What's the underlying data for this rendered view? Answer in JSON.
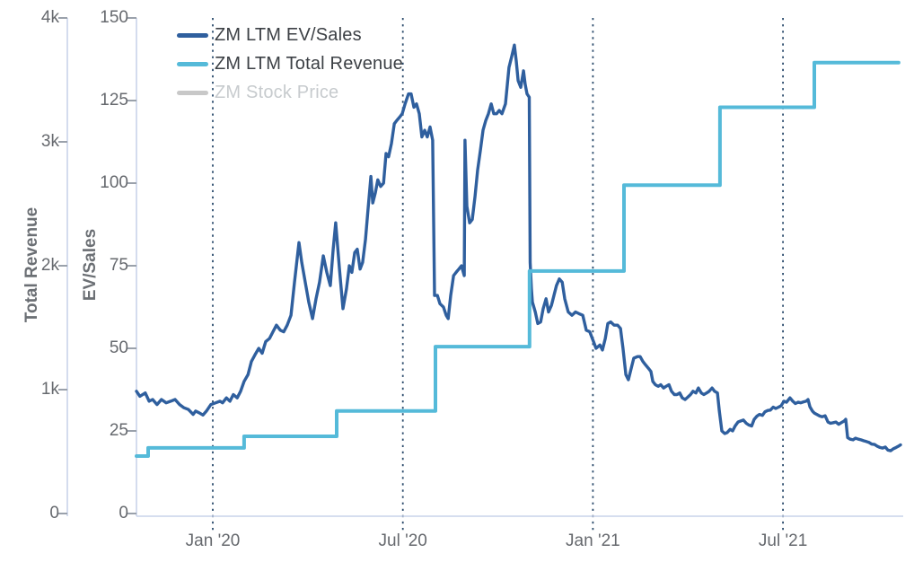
{
  "chart_data": {
    "type": "line",
    "title": "",
    "legend": [
      {
        "label": "ZM LTM EV/Sales",
        "color": "#2f5f9e",
        "enabled": true
      },
      {
        "label": "ZM LTM Total Revenue",
        "color": "#55bad9",
        "enabled": true
      },
      {
        "label": "ZM Stock Price",
        "color": "#c8c8c8",
        "enabled": false
      }
    ],
    "x_axis": {
      "tick_labels": [
        "Jan '20",
        "Jul '20",
        "Jan '21",
        "Jul '21"
      ],
      "tick_positions_months": [
        0,
        6,
        12,
        18
      ],
      "range_months": [
        -2.45,
        21.85
      ],
      "gridlines": "dotted-vertical",
      "gridline_color": "#2a4a6b"
    },
    "y_axis_revenue": {
      "title": "Total Revenue",
      "tick_labels": [
        "0",
        "1k",
        "2k",
        "3k",
        "4k"
      ],
      "tick_values": [
        0,
        1000,
        2000,
        3000,
        4000
      ],
      "range": [
        0,
        4000
      ]
    },
    "y_axis_evsales": {
      "title": "EV/Sales",
      "tick_labels": [
        "0",
        "25",
        "50",
        "75",
        "100",
        "125",
        "150"
      ],
      "tick_values": [
        0,
        25,
        50,
        75,
        100,
        125,
        150
      ],
      "range": [
        0,
        150
      ]
    },
    "axis_line_color": "#c9d3ea",
    "tick_mark_color": "#9aa1ab",
    "series": [
      {
        "name": "ZM LTM EV/Sales",
        "axis": "evsales",
        "color": "#2f5f9e",
        "stroke_width": 3.4,
        "points": [
          [
            -2.41,
            37
          ],
          [
            -2.3,
            35.5
          ],
          [
            -2.13,
            36.5
          ],
          [
            -2.01,
            34
          ],
          [
            -1.9,
            34.5
          ],
          [
            -1.76,
            33
          ],
          [
            -1.62,
            34.5
          ],
          [
            -1.47,
            33.5
          ],
          [
            -1.33,
            34
          ],
          [
            -1.19,
            34.5
          ],
          [
            -1.05,
            33
          ],
          [
            -0.91,
            32
          ],
          [
            -0.77,
            31.5
          ],
          [
            -0.62,
            30
          ],
          [
            -0.54,
            31
          ],
          [
            -0.43,
            30.5
          ],
          [
            -0.31,
            29.8
          ],
          [
            -0.2,
            31
          ],
          [
            -0.06,
            33
          ],
          [
            0.09,
            33.5
          ],
          [
            0.23,
            34
          ],
          [
            0.31,
            33.5
          ],
          [
            0.43,
            35
          ],
          [
            0.54,
            34
          ],
          [
            0.65,
            36
          ],
          [
            0.77,
            35
          ],
          [
            0.88,
            37
          ],
          [
            0.99,
            40
          ],
          [
            1.11,
            42
          ],
          [
            1.22,
            46
          ],
          [
            1.33,
            48
          ],
          [
            1.45,
            50
          ],
          [
            1.56,
            48.5
          ],
          [
            1.67,
            52
          ],
          [
            1.79,
            53
          ],
          [
            1.9,
            55
          ],
          [
            2.01,
            57
          ],
          [
            2.13,
            55.5
          ],
          [
            2.24,
            55
          ],
          [
            2.35,
            57
          ],
          [
            2.47,
            60
          ],
          [
            2.58,
            70
          ],
          [
            2.72,
            82
          ],
          [
            2.81,
            76
          ],
          [
            2.92,
            70
          ],
          [
            3.03,
            64
          ],
          [
            3.15,
            59
          ],
          [
            3.26,
            65
          ],
          [
            3.37,
            70
          ],
          [
            3.49,
            78
          ],
          [
            3.6,
            73
          ],
          [
            3.71,
            69
          ],
          [
            3.8,
            80
          ],
          [
            3.88,
            88
          ],
          [
            4.0,
            74
          ],
          [
            4.11,
            62
          ],
          [
            4.22,
            68
          ],
          [
            4.31,
            75
          ],
          [
            4.39,
            73
          ],
          [
            4.48,
            79
          ],
          [
            4.56,
            80
          ],
          [
            4.65,
            74
          ],
          [
            4.73,
            76
          ],
          [
            4.82,
            83
          ],
          [
            4.9,
            92
          ],
          [
            4.99,
            102
          ],
          [
            5.05,
            94
          ],
          [
            5.13,
            97
          ],
          [
            5.21,
            101
          ],
          [
            5.3,
            99
          ],
          [
            5.39,
            100
          ],
          [
            5.47,
            109
          ],
          [
            5.55,
            108
          ],
          [
            5.64,
            112
          ],
          [
            5.73,
            118
          ],
          [
            5.81,
            119
          ],
          [
            5.9,
            120
          ],
          [
            5.98,
            121
          ],
          [
            6.07,
            124
          ],
          [
            6.18,
            127
          ],
          [
            6.26,
            127
          ],
          [
            6.35,
            123
          ],
          [
            6.43,
            124
          ],
          [
            6.52,
            121
          ],
          [
            6.6,
            114
          ],
          [
            6.69,
            116
          ],
          [
            6.77,
            114
          ],
          [
            6.86,
            117
          ],
          [
            6.94,
            113
          ],
          [
            7.0,
            66
          ],
          [
            7.09,
            66
          ],
          [
            7.17,
            63.5
          ],
          [
            7.28,
            62.5
          ],
          [
            7.37,
            60
          ],
          [
            7.43,
            59
          ],
          [
            7.51,
            66
          ],
          [
            7.6,
            72
          ],
          [
            7.68,
            73
          ],
          [
            7.77,
            74
          ],
          [
            7.85,
            75
          ],
          [
            7.94,
            72
          ],
          [
            7.96,
            113
          ],
          [
            8.02,
            93
          ],
          [
            8.11,
            88
          ],
          [
            8.19,
            89
          ],
          [
            8.28,
            96
          ],
          [
            8.36,
            104
          ],
          [
            8.45,
            110
          ],
          [
            8.53,
            116
          ],
          [
            8.62,
            119
          ],
          [
            8.7,
            121
          ],
          [
            8.79,
            124
          ],
          [
            8.87,
            121
          ],
          [
            8.96,
            121
          ],
          [
            9.04,
            122
          ],
          [
            9.13,
            121
          ],
          [
            9.24,
            124
          ],
          [
            9.35,
            135
          ],
          [
            9.44,
            138.5
          ],
          [
            9.52,
            141.8
          ],
          [
            9.58,
            137
          ],
          [
            9.64,
            131
          ],
          [
            9.72,
            129
          ],
          [
            9.81,
            134
          ],
          [
            9.86,
            130
          ],
          [
            9.92,
            127
          ],
          [
            9.99,
            126
          ],
          [
            10.02,
            76
          ],
          [
            10.06,
            68
          ],
          [
            10.09,
            64
          ],
          [
            10.18,
            61
          ],
          [
            10.26,
            57.5
          ],
          [
            10.35,
            58
          ],
          [
            10.43,
            62
          ],
          [
            10.52,
            65
          ],
          [
            10.6,
            61
          ],
          [
            10.69,
            63
          ],
          [
            10.77,
            66
          ],
          [
            10.85,
            69
          ],
          [
            10.94,
            71
          ],
          [
            11.03,
            70
          ],
          [
            11.11,
            65
          ],
          [
            11.22,
            61
          ],
          [
            11.34,
            60
          ],
          [
            11.45,
            61
          ],
          [
            11.56,
            60.5
          ],
          [
            11.68,
            60
          ],
          [
            11.79,
            55.5
          ],
          [
            11.9,
            55
          ],
          [
            12.02,
            52
          ],
          [
            12.1,
            50
          ],
          [
            12.22,
            51
          ],
          [
            12.3,
            49.5
          ],
          [
            12.39,
            53
          ],
          [
            12.47,
            57.5
          ],
          [
            12.56,
            58
          ],
          [
            12.67,
            57
          ],
          [
            12.78,
            57
          ],
          [
            12.87,
            56
          ],
          [
            12.95,
            50
          ],
          [
            13.04,
            42
          ],
          [
            13.12,
            40.5
          ],
          [
            13.21,
            44
          ],
          [
            13.29,
            47
          ],
          [
            13.41,
            47.5
          ],
          [
            13.49,
            47.5
          ],
          [
            13.58,
            46
          ],
          [
            13.66,
            45
          ],
          [
            13.75,
            44
          ],
          [
            13.83,
            43
          ],
          [
            13.89,
            40
          ],
          [
            13.97,
            39
          ],
          [
            14.06,
            38.5
          ],
          [
            14.14,
            39
          ],
          [
            14.23,
            38
          ],
          [
            14.31,
            38.5
          ],
          [
            14.4,
            39
          ],
          [
            14.48,
            37
          ],
          [
            14.57,
            36
          ],
          [
            14.65,
            36
          ],
          [
            14.74,
            36.5
          ],
          [
            14.82,
            35
          ],
          [
            14.91,
            34.5
          ],
          [
            14.99,
            35.2
          ],
          [
            15.08,
            36
          ],
          [
            15.16,
            37
          ],
          [
            15.25,
            36.5
          ],
          [
            15.33,
            38
          ],
          [
            15.42,
            36.5
          ],
          [
            15.5,
            36
          ],
          [
            15.59,
            36.5
          ],
          [
            15.67,
            37
          ],
          [
            15.76,
            38
          ],
          [
            15.84,
            37
          ],
          [
            15.93,
            36.5
          ],
          [
            15.99,
            31
          ],
          [
            16.07,
            25
          ],
          [
            16.16,
            24.2
          ],
          [
            16.24,
            24.5
          ],
          [
            16.33,
            25.5
          ],
          [
            16.41,
            25
          ],
          [
            16.49,
            26.5
          ],
          [
            16.58,
            27.7
          ],
          [
            16.66,
            28
          ],
          [
            16.75,
            28.3
          ],
          [
            16.84,
            27.3
          ],
          [
            16.92,
            26.8
          ],
          [
            17.01,
            26.5
          ],
          [
            17.09,
            28.5
          ],
          [
            17.18,
            29.5
          ],
          [
            17.26,
            30
          ],
          [
            17.35,
            29.7
          ],
          [
            17.43,
            30.8
          ],
          [
            17.52,
            31.2
          ],
          [
            17.6,
            31.3
          ],
          [
            17.69,
            32.2
          ],
          [
            17.77,
            31.8
          ],
          [
            17.86,
            32.2
          ],
          [
            17.94,
            32.6
          ],
          [
            18.03,
            34
          ],
          [
            18.11,
            33.7
          ],
          [
            18.22,
            35
          ],
          [
            18.31,
            34
          ],
          [
            18.39,
            33.3
          ],
          [
            18.48,
            33.7
          ],
          [
            18.56,
            33.5
          ],
          [
            18.65,
            33.8
          ],
          [
            18.73,
            34
          ],
          [
            18.79,
            34.5
          ],
          [
            18.85,
            32.3
          ],
          [
            18.93,
            31
          ],
          [
            18.99,
            30.4
          ],
          [
            19.07,
            30
          ],
          [
            19.16,
            29.5
          ],
          [
            19.24,
            29.3
          ],
          [
            19.33,
            29.6
          ],
          [
            19.42,
            27.7
          ],
          [
            19.5,
            27.3
          ],
          [
            19.59,
            27.5
          ],
          [
            19.67,
            27.7
          ],
          [
            19.76,
            27
          ],
          [
            19.84,
            27.5
          ],
          [
            19.93,
            28
          ],
          [
            19.98,
            28.5
          ],
          [
            20.04,
            23
          ],
          [
            20.12,
            22.5
          ],
          [
            20.21,
            22.3
          ],
          [
            20.29,
            22.8
          ],
          [
            20.38,
            22.5
          ],
          [
            20.46,
            22.3
          ],
          [
            20.55,
            22
          ],
          [
            20.63,
            21.8
          ],
          [
            20.72,
            21.5
          ],
          [
            20.8,
            21
          ],
          [
            20.89,
            20.9
          ],
          [
            20.97,
            20.4
          ],
          [
            21.06,
            20
          ],
          [
            21.14,
            19.8
          ],
          [
            21.23,
            20.1
          ],
          [
            21.31,
            19.2
          ],
          [
            21.4,
            19
          ],
          [
            21.48,
            19.6
          ],
          [
            21.57,
            20
          ],
          [
            21.65,
            20.4
          ],
          [
            21.71,
            20.8
          ]
        ]
      },
      {
        "name": "ZM LTM Total Revenue",
        "axis": "revenue",
        "color": "#55bad9",
        "stroke_width": 4,
        "step": true,
        "points": [
          [
            -2.41,
            464
          ],
          [
            -2.04,
            464
          ],
          [
            -2.04,
            530
          ],
          [
            0.99,
            530
          ],
          [
            0.99,
            623
          ],
          [
            3.91,
            623
          ],
          [
            3.91,
            828
          ],
          [
            7.03,
            828
          ],
          [
            7.03,
            1347
          ],
          [
            10.0,
            1347
          ],
          [
            10.0,
            1957
          ],
          [
            12.98,
            1957
          ],
          [
            12.98,
            2651
          ],
          [
            16.01,
            2651
          ],
          [
            16.01,
            3279
          ],
          [
            18.99,
            3279
          ],
          [
            18.99,
            3640
          ],
          [
            21.65,
            3640
          ]
        ]
      },
      {
        "name": "ZM Stock Price",
        "axis": "price",
        "color": "#c8c8c8",
        "hidden": true,
        "points": []
      }
    ]
  }
}
